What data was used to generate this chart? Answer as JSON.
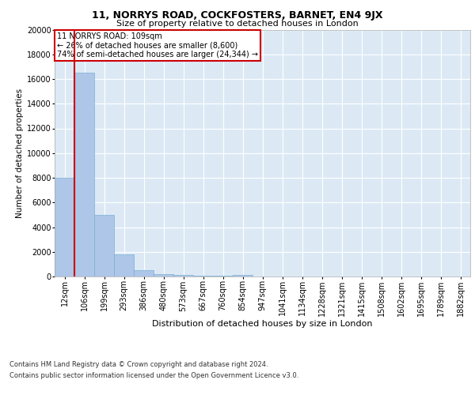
{
  "title": "11, NORRYS ROAD, COCKFOSTERS, BARNET, EN4 9JX",
  "subtitle": "Size of property relative to detached houses in London",
  "xlabel": "Distribution of detached houses by size in London",
  "ylabel": "Number of detached properties",
  "categories": [
    "12sqm",
    "106sqm",
    "199sqm",
    "293sqm",
    "386sqm",
    "480sqm",
    "573sqm",
    "667sqm",
    "760sqm",
    "854sqm",
    "947sqm",
    "1041sqm",
    "1134sqm",
    "1228sqm",
    "1321sqm",
    "1415sqm",
    "1508sqm",
    "1602sqm",
    "1695sqm",
    "1789sqm",
    "1882sqm"
  ],
  "values": [
    8000,
    16500,
    5000,
    1800,
    500,
    200,
    100,
    75,
    60,
    100,
    0,
    0,
    0,
    0,
    0,
    0,
    0,
    0,
    0,
    0,
    0
  ],
  "bar_color": "#aec6e8",
  "bar_edge_color": "#7aafd4",
  "vline_x": 1,
  "vline_color": "#cc0000",
  "annotation_box_text": "11 NORRYS ROAD: 109sqm\n← 26% of detached houses are smaller (8,600)\n74% of semi-detached houses are larger (24,344) →",
  "annotation_box_color": "#cc0000",
  "background_color": "#dce9f5",
  "footer_line1": "Contains HM Land Registry data © Crown copyright and database right 2024.",
  "footer_line2": "Contains public sector information licensed under the Open Government Licence v3.0.",
  "ylim": [
    0,
    20000
  ],
  "yticks": [
    0,
    2000,
    4000,
    6000,
    8000,
    10000,
    12000,
    14000,
    16000,
    18000,
    20000
  ],
  "title_fontsize": 9,
  "subtitle_fontsize": 8,
  "xlabel_fontsize": 8,
  "ylabel_fontsize": 7.5,
  "tick_fontsize": 7,
  "annotation_fontsize": 7,
  "footer_fontsize": 6
}
